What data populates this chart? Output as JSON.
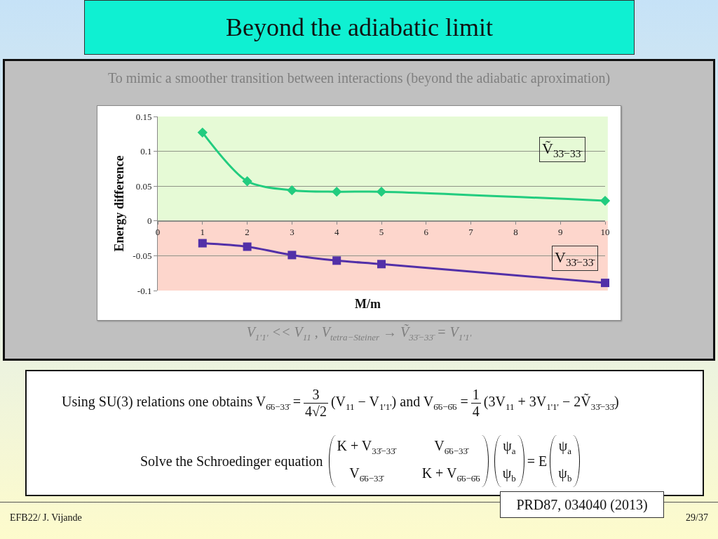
{
  "chart_data": {
    "type": "line",
    "title": "Beyond the adiabatic limit",
    "xlabel": "M/m",
    "ylabel": "Energy difference",
    "x": [
      1,
      2,
      3,
      4,
      5,
      10
    ],
    "series": [
      {
        "name": "Ṽ$_{33̄−33̄}$",
        "color": "#22cc7f",
        "marker": "diamond",
        "values": [
          0.127,
          0.057,
          0.044,
          0.042,
          0.042,
          0.029
        ]
      },
      {
        "name": "V$_{33̄−33̄}$",
        "color": "#5230a8",
        "marker": "square",
        "values": [
          -0.032,
          -0.037,
          -0.049,
          -0.057,
          -0.062,
          -0.089
        ]
      }
    ],
    "xlim": [
      0,
      10
    ],
    "xticks": [
      0,
      1,
      2,
      3,
      4,
      5,
      6,
      7,
      8,
      9,
      10
    ],
    "ylim": [
      -0.1,
      0.15
    ],
    "yticks": [
      -0.1,
      -0.05,
      0,
      0.05,
      0.1,
      0.15
    ],
    "bands": [
      {
        "axis": "y",
        "from": 0,
        "to": 0.15,
        "color": "#e6fad6"
      },
      {
        "axis": "y",
        "from": -0.1,
        "to": 0,
        "color": "#fdd6cc"
      }
    ],
    "grid": "y",
    "legend": false,
    "line_style": "solid",
    "annotations": [
      "To mimic a smoother transition between interactions  (beyond the adiabatic aproximation)",
      "V$_{1'1'}$ << V$_{11}$ , V$_{tetra−Steiner}$ → Ṽ$_{33̄−33̄}$ = V$_{1'1'}$",
      "Using SU(3) relations one obtains V$_{6̄6−33̄}$ =",
      "3",
      "4√2",
      "(V$_{11}$ − V$_{1'1'}$) and V$_{6̄6−6̄6}$ =",
      "1",
      "4",
      "(3V$_{11}$ + 3V$_{1'1'}$ − 2Ṽ$_{33̄−33̄}$)",
      "Solve the Schroedinger equation",
      "K + V$_{33̄−33̄}$",
      "V$_{6̄6−33̄}$",
      "V$_{6̄6−33̄}$",
      "K + V$_{6̄6−6̄6}$",
      "ψ$_{a}$",
      "ψ$_{b}$",
      "= E",
      "ψ$_{a}$",
      "ψ$_{b}$",
      "PRD87, 034040 (2013)",
      "EFB22/ J. Vijande",
      "29/37"
    ]
  }
}
